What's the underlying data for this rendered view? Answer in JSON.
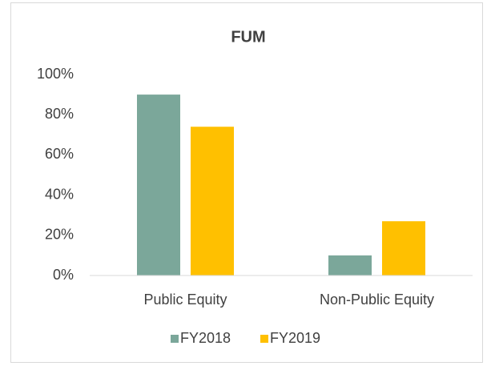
{
  "chart_data": {
    "type": "bar",
    "title": "FUM",
    "categories": [
      "Public Equity",
      "Non-Public Equity"
    ],
    "series": [
      {
        "name": "FY2018",
        "color": "#7ba79a",
        "values": [
          90,
          10
        ]
      },
      {
        "name": "FY2019",
        "color": "#ffc000",
        "values": [
          74,
          27
        ]
      }
    ],
    "ylim": [
      0,
      100
    ],
    "yticks": [
      {
        "value": 0,
        "label": "0%"
      },
      {
        "value": 20,
        "label": "20%"
      },
      {
        "value": 40,
        "label": "40%"
      },
      {
        "value": 60,
        "label": "60%"
      },
      {
        "value": 80,
        "label": "80%"
      },
      {
        "value": 100,
        "label": "100%"
      }
    ],
    "grid": false,
    "legend": "bottom"
  }
}
